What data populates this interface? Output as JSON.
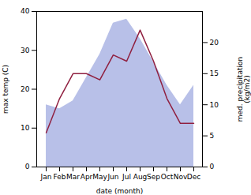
{
  "chart_data": {
    "type": "area",
    "xlabel": "date (month)",
    "ylabel": "max temp (C)",
    "y2label": "med. precipitation\n(kg/m2)",
    "categories": [
      "Jan",
      "Feb",
      "Mar",
      "Apr",
      "May",
      "Jun",
      "Jul",
      "Aug",
      "Sep",
      "Oct",
      "Nov",
      "Dec"
    ],
    "series": [
      {
        "type": "area",
        "color": "#b8c0e8",
        "values": [
          16,
          15,
          17,
          23,
          29,
          37,
          38,
          33,
          27,
          21,
          16,
          21
        ]
      },
      {
        "type": "line",
        "axis": "y2",
        "color": "#902040",
        "values": [
          5.5,
          11,
          15,
          15,
          14,
          18,
          17,
          22,
          17,
          11,
          7,
          7
        ]
      }
    ],
    "ylim": [
      0,
      40
    ],
    "yticks": [
      0,
      10,
      20,
      30,
      40
    ],
    "y2lim": [
      0,
      25
    ],
    "y2ticks": [
      0,
      5,
      10,
      15,
      20
    ]
  }
}
